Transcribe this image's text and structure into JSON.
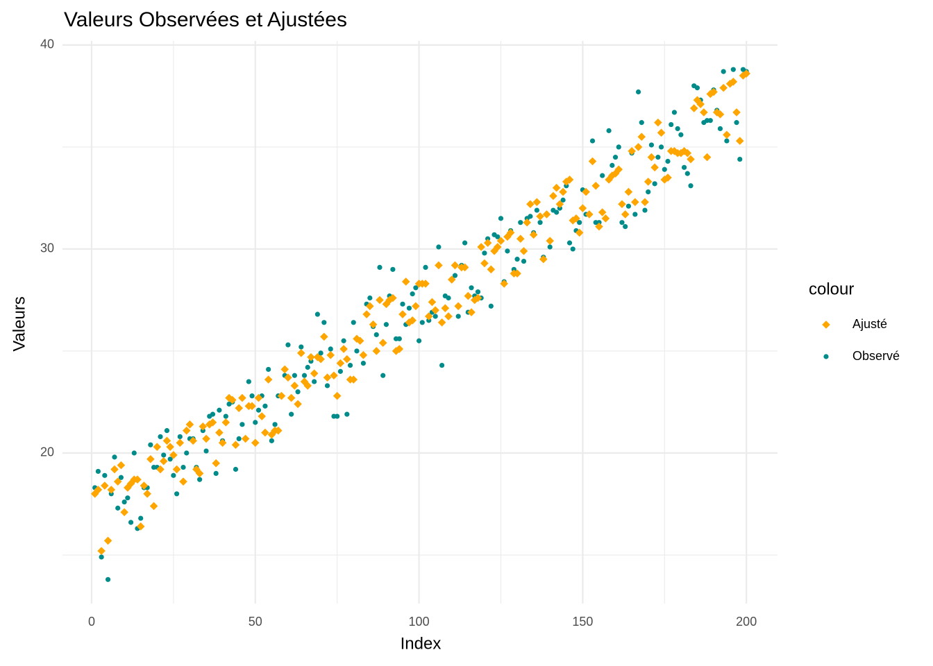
{
  "chart_data": {
    "type": "scatter",
    "title": "Valeurs Observées et Ajustées",
    "x_label": "Index",
    "y_label": "Valeurs",
    "legend_title": "colour",
    "legend_position": "right",
    "grid": true,
    "xlim": [
      -8.9,
      209.5
    ],
    "ylim": [
      12.62,
      40.2
    ],
    "xticks": [
      0,
      50,
      100,
      150,
      200
    ],
    "yticks": [
      20,
      30,
      40
    ],
    "xminor": [
      25,
      75,
      125,
      175
    ],
    "yminor": [
      15,
      25,
      35
    ],
    "x": [
      1,
      2,
      3,
      4,
      5,
      6,
      7,
      8,
      9,
      10,
      11,
      12,
      13,
      14,
      15,
      16,
      17,
      18,
      19,
      20,
      21,
      22,
      23,
      24,
      25,
      26,
      27,
      28,
      29,
      30,
      31,
      32,
      33,
      34,
      35,
      36,
      37,
      38,
      39,
      40,
      41,
      42,
      43,
      44,
      45,
      46,
      47,
      48,
      49,
      50,
      51,
      52,
      53,
      54,
      55,
      56,
      57,
      58,
      59,
      60,
      61,
      62,
      63,
      64,
      65,
      66,
      67,
      68,
      69,
      70,
      71,
      72,
      73,
      74,
      75,
      76,
      77,
      78,
      79,
      80,
      81,
      82,
      83,
      84,
      85,
      86,
      87,
      88,
      89,
      90,
      91,
      92,
      93,
      94,
      95,
      96,
      97,
      98,
      99,
      100,
      101,
      102,
      103,
      104,
      105,
      106,
      107,
      108,
      109,
      110,
      111,
      112,
      113,
      114,
      115,
      116,
      117,
      118,
      119,
      120,
      121,
      122,
      123,
      124,
      125,
      126,
      127,
      128,
      129,
      130,
      131,
      132,
      133,
      134,
      135,
      136,
      137,
      138,
      139,
      140,
      141,
      142,
      143,
      144,
      145,
      146,
      147,
      148,
      149,
      150,
      151,
      152,
      153,
      154,
      155,
      156,
      157,
      158,
      159,
      160,
      161,
      162,
      163,
      164,
      165,
      166,
      167,
      168,
      169,
      170,
      171,
      172,
      173,
      174,
      175,
      176,
      177,
      178,
      179,
      180,
      181,
      182,
      183,
      184,
      185,
      186,
      187,
      188,
      189,
      190,
      191,
      192,
      193,
      194,
      195,
      196,
      197,
      198,
      199,
      200
    ],
    "series": [
      {
        "name": "Ajusté",
        "color": "#FFA500",
        "shape": "diamond",
        "values": [
          18.0,
          18.2,
          15.2,
          18.4,
          15.7,
          18.2,
          19.2,
          18.6,
          19.4,
          17.1,
          18.3,
          18.5,
          18.7,
          18.7,
          16.4,
          18.4,
          18.0,
          19.7,
          17.4,
          20.3,
          19.2,
          19.6,
          20.6,
          20.3,
          19.9,
          19.2,
          20.5,
          18.6,
          21.1,
          21.4,
          20.6,
          19.2,
          19.0,
          21.3,
          20.7,
          21.4,
          21.5,
          19.5,
          21.0,
          20.5,
          21.5,
          22.7,
          22.6,
          20.4,
          22.2,
          22.7,
          20.7,
          22.3,
          22.3,
          20.5,
          22.7,
          21.8,
          21.0,
          23.6,
          20.9,
          21.1,
          21.1,
          22.8,
          24.1,
          23.7,
          22.7,
          23.3,
          22.4,
          24.9,
          23.5,
          23.3,
          24.7,
          23.9,
          24.7,
          24.6,
          25.7,
          23.7,
          24.8,
          23.8,
          22.8,
          24.4,
          25.1,
          24.6,
          23.6,
          23.6,
          25.6,
          25.5,
          24.8,
          26.8,
          27.2,
          26.3,
          25.0,
          27.5,
          25.4,
          27.3,
          27.5,
          27.6,
          25.0,
          25.1,
          26.8,
          28.4,
          26.4,
          26.5,
          27.2,
          28.3,
          28.3,
          28.3,
          26.7,
          27.4,
          27.0,
          29.2,
          26.4,
          27.1,
          26.7,
          28.5,
          29.2,
          27.2,
          29.1,
          29.1,
          27.7,
          26.9,
          27.5,
          27.6,
          30.1,
          29.3,
          30.3,
          29.0,
          29.9,
          30.1,
          30.4,
          28.3,
          30.6,
          30.8,
          28.8,
          28.8,
          30.5,
          29.9,
          31.3,
          32.2,
          30.7,
          32.3,
          31.6,
          29.5,
          31.7,
          30.4,
          32.6,
          33.0,
          32.2,
          32.8,
          33.3,
          33.4,
          31.4,
          31.5,
          30.8,
          32.0,
          32.8,
          31.7,
          34.3,
          33.1,
          31.1,
          31.8,
          31.5,
          33.4,
          33.6,
          33.7,
          33.9,
          32.2,
          31.7,
          32.8,
          34.8,
          32.3,
          35.0,
          35.5,
          32.3,
          33.3,
          34.5,
          34.0,
          36.2,
          35.7,
          33.4,
          33.5,
          34.8,
          34.8,
          34.7,
          34.7,
          34.8,
          34.7,
          34.4,
          36.9,
          37.3,
          37.1,
          36.7,
          34.5,
          37.6,
          37.7,
          36.7,
          36.6,
          37.9,
          35.6,
          38.1,
          38.2,
          36.7,
          35.3,
          38.5,
          38.6
        ]
      },
      {
        "name": "Observé",
        "color": "#008B8B",
        "shape": "circle",
        "values": [
          18.3,
          19.1,
          14.9,
          18.9,
          13.8,
          18.0,
          19.8,
          17.3,
          18.8,
          17.6,
          17.8,
          16.6,
          20.0,
          16.3,
          16.8,
          18.3,
          18.3,
          20.4,
          19.3,
          19.3,
          20.8,
          19.9,
          21.1,
          19.7,
          18.9,
          18.0,
          20.8,
          19.3,
          20.0,
          20.7,
          20.7,
          19.3,
          18.7,
          21.1,
          20.1,
          21.8,
          21.9,
          19.0,
          22.1,
          20.6,
          21.8,
          22.4,
          22.5,
          19.2,
          20.7,
          21.4,
          20.7,
          23.5,
          22.8,
          21.5,
          22.1,
          22.8,
          22.3,
          24.1,
          20.6,
          21.4,
          22.8,
          22.8,
          23.8,
          25.3,
          21.9,
          23.8,
          23.0,
          25.2,
          23.8,
          24.2,
          24.5,
          23.5,
          26.8,
          24.9,
          26.4,
          23.3,
          25.1,
          21.8,
          21.8,
          24.0,
          25.5,
          21.9,
          24.3,
          26.4,
          25.0,
          25.5,
          24.4,
          27.3,
          27.6,
          26.2,
          25.8,
          29.1,
          23.8,
          26.3,
          27.7,
          29.0,
          25.6,
          25.6,
          27.3,
          26.3,
          27.1,
          27.8,
          28.1,
          25.5,
          26.4,
          29.1,
          26.5,
          26.9,
          26.7,
          30.1,
          24.3,
          27.7,
          27.6,
          28.5,
          28.7,
          26.7,
          29.2,
          30.3,
          26.9,
          28.1,
          27.7,
          27.9,
          27.6,
          29.8,
          30.5,
          27.2,
          30.7,
          30.6,
          31.5,
          28.4,
          29.9,
          30.9,
          29.0,
          29.5,
          31.3,
          29.4,
          31.5,
          31.6,
          30.8,
          31.9,
          31.3,
          29.6,
          31.7,
          30.1,
          31.9,
          31.8,
          32.0,
          32.4,
          33.1,
          30.3,
          30.0,
          30.9,
          31.3,
          32.9,
          31.7,
          31.7,
          35.3,
          31.3,
          31.3,
          33.6,
          31.5,
          35.8,
          34.1,
          34.5,
          35.0,
          31.3,
          31.1,
          32.1,
          34.7,
          31.7,
          37.7,
          36.2,
          31.9,
          32.8,
          35.1,
          33.2,
          34.5,
          35.0,
          33.9,
          34.3,
          36.1,
          36.7,
          35.9,
          35.6,
          34.0,
          33.7,
          33.1,
          38.0,
          37.9,
          37.3,
          36.2,
          36.3,
          36.3,
          37.8,
          36.8,
          35.9,
          38.7,
          35.3,
          38.1,
          38.8,
          36.2,
          34.4,
          38.8,
          38.7
        ]
      }
    ]
  }
}
